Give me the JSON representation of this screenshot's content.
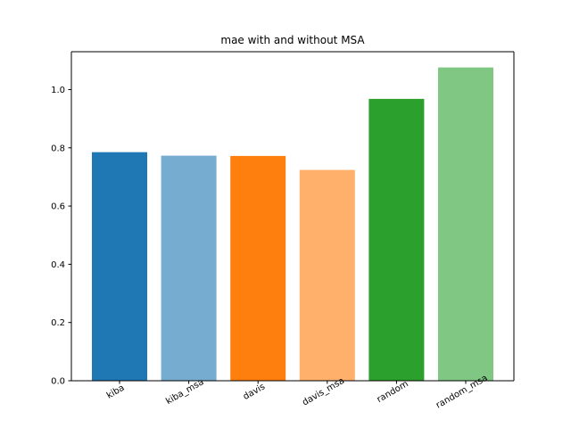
{
  "chart_data": {
    "type": "bar",
    "title": "mae with and without MSA",
    "xlabel": "",
    "ylabel": "",
    "categories": [
      "kiba",
      "kiba_msa",
      "davis",
      "davis_msa",
      "random",
      "random_msa"
    ],
    "values": [
      0.785,
      0.773,
      0.772,
      0.724,
      0.968,
      1.076
    ],
    "colors": [
      "#1f77b4",
      "#77acd1",
      "#ff7f0e",
      "#ffb06b",
      "#2ca02c",
      "#81c784"
    ],
    "ylim": [
      0,
      1.13
    ],
    "yticks": [
      0.0,
      0.2,
      0.4,
      0.6,
      0.8,
      1.0
    ],
    "ytick_labels": [
      "0.0",
      "0.2",
      "0.4",
      "0.6",
      "0.8",
      "1.0"
    ],
    "grid": false,
    "legend": "none"
  }
}
